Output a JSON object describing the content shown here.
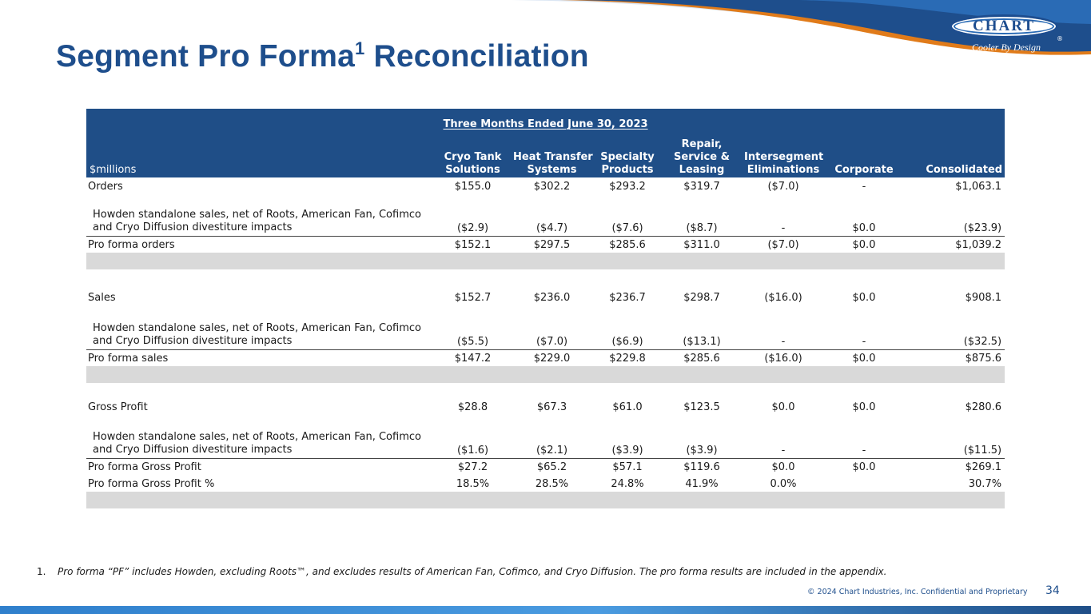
{
  "header": {
    "title": "Segment Pro Forma",
    "title_superscript": "1",
    "title_suffix": " Reconciliation",
    "logo_text": "CHART",
    "logo_tagline": "Cooler By Design",
    "logo_reg": "®"
  },
  "table": {
    "period": "Three Months Ended June 30, 2023",
    "unit_label": "$millions",
    "columns": [
      {
        "line1": "Cryo Tank",
        "line2": "Solutions"
      },
      {
        "line1": "Heat Transfer",
        "line2": "Systems"
      },
      {
        "line1": "Specialty",
        "line2": "Products"
      },
      {
        "line1": "Repair,",
        "line2": "Service &",
        "line3": "Leasing"
      },
      {
        "line1": "Intersegment",
        "line2": "Eliminations"
      },
      {
        "line1": "Corporate"
      },
      {
        "line1": "Consolidated"
      }
    ],
    "orders": {
      "label": "Orders",
      "values": [
        "$155.0",
        "$302.2",
        "$293.2",
        "$319.7",
        "($7.0)",
        "-",
        "$1,063.1"
      ]
    },
    "orders_howden": {
      "label": "Howden standalone sales, net of Roots, American Fan, Cofimco and Cryo Diffusion divestiture impacts",
      "values": [
        "($2.9)",
        "($4.7)",
        "($7.6)",
        "($8.7)",
        "-",
        "$0.0",
        "($23.9)"
      ]
    },
    "pro_forma_orders": {
      "label": "Pro forma orders",
      "values": [
        "$152.1",
        "$297.5",
        "$285.6",
        "$311.0",
        "($7.0)",
        "$0.0",
        "$1,039.2"
      ]
    },
    "sales": {
      "label": "Sales",
      "values": [
        "$152.7",
        "$236.0",
        "$236.7",
        "$298.7",
        "($16.0)",
        "$0.0",
        "$908.1"
      ]
    },
    "sales_howden": {
      "label": "Howden standalone sales, net of Roots, American Fan, Cofimco and Cryo Diffusion divestiture impacts",
      "values": [
        "($5.5)",
        "($7.0)",
        "($6.9)",
        "($13.1)",
        "-",
        "-",
        "($32.5)"
      ]
    },
    "pro_forma_sales": {
      "label": "Pro forma sales",
      "values": [
        "$147.2",
        "$229.0",
        "$229.8",
        "$285.6",
        "($16.0)",
        "$0.0",
        "$875.6"
      ]
    },
    "gross_profit": {
      "label": "Gross Profit",
      "values": [
        "$28.8",
        "$67.3",
        "$61.0",
        "$123.5",
        "$0.0",
        "$0.0",
        "$280.6"
      ]
    },
    "gross_profit_howden": {
      "label": "Howden standalone sales, net of Roots, American Fan, Cofimco and Cryo Diffusion divestiture impacts",
      "values": [
        "($1.6)",
        "($2.1)",
        "($3.9)",
        "($3.9)",
        "-",
        "-",
        "($11.5)"
      ]
    },
    "pro_forma_gross_profit": {
      "label": "Pro forma Gross Profit",
      "values": [
        "$27.2",
        "$65.2",
        "$57.1",
        "$119.6",
        "$0.0",
        "$0.0",
        "$269.1"
      ]
    },
    "pro_forma_gross_profit_pct": {
      "label": "Pro forma Gross Profit %",
      "values": [
        "18.5%",
        "28.5%",
        "24.8%",
        "41.9%",
        "0.0%",
        "",
        "30.7%"
      ]
    }
  },
  "footer": {
    "footnote_number": "1.",
    "footnote_text": "Pro forma “PF” includes Howden, excluding Roots™, and excludes results of American Fan, Cofimco, and Cryo Diffusion. The pro forma results are included in the appendix.",
    "copyright": "© 2024 Chart Industries, Inc. Confidential and Proprietary",
    "page_number": "34"
  },
  "colors": {
    "brand_blue": "#1e4e8c",
    "table_header": "#1f4e87",
    "swoosh_orange": "#e07b1a",
    "spacer_gray": "#d9d9d9"
  }
}
